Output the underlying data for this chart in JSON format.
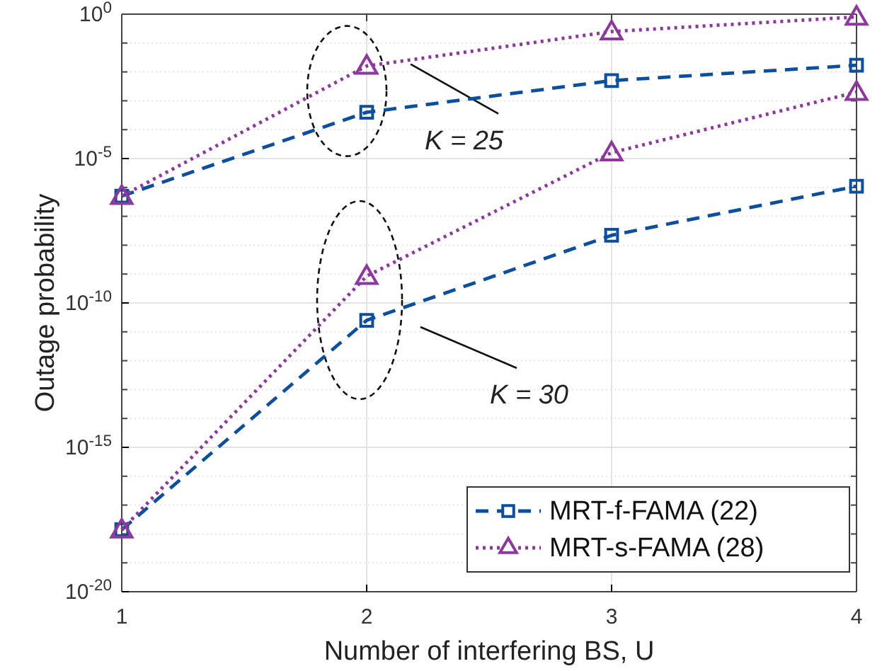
{
  "chart_data": {
    "type": "line",
    "xlabel": "Number of interfering BS, U",
    "ylabel": "Outage probability",
    "x": [
      1,
      2,
      3,
      4
    ],
    "xlim": [
      1,
      4
    ],
    "xticks": [
      1,
      2,
      3,
      4
    ],
    "ylim": [
      1e-20,
      1
    ],
    "log": true,
    "yticks": [
      {
        "value": 1e-20,
        "label": "10$^{-20}$"
      },
      {
        "value": 1e-15,
        "label": "10$^{-15}$"
      },
      {
        "value": 1e-10,
        "label": "10$^{-10}$"
      },
      {
        "value": 1e-05,
        "label": "10$^{-5}$"
      },
      {
        "value": 1,
        "label": "10$^{0}$"
      }
    ],
    "grid": true,
    "legend": "bottom right",
    "series": [
      {
        "name": "MRT-f-FAMA (22)",
        "color": "#0d4f9c",
        "marker": "square",
        "line_style": "dashed",
        "values": [
          5e-07,
          0.0004,
          0.005,
          0.017
        ]
      },
      {
        "name": "MRT-s-FAMA (28)",
        "color": "#8b3a9b",
        "marker": "triangle",
        "line_style": "dotted",
        "values": [
          5e-07,
          0.016,
          0.25,
          0.8
        ]
      },
      {
        "color": "#0d4f9c",
        "marker": "square",
        "line_style": "dashed",
        "values": [
          1.4e-18,
          2.5e-11,
          2.2e-08,
          1.1e-06
        ]
      },
      {
        "color": "#8b3a9b",
        "marker": "triangle",
        "line_style": "dotted",
        "values": [
          1.4e-18,
          8.5e-10,
          1.6e-05,
          0.002
        ]
      }
    ],
    "annotations": [
      {
        "text": "K = 25",
        "x": 2,
        "y": 0.0004
      },
      "K = 30"
    ]
  }
}
